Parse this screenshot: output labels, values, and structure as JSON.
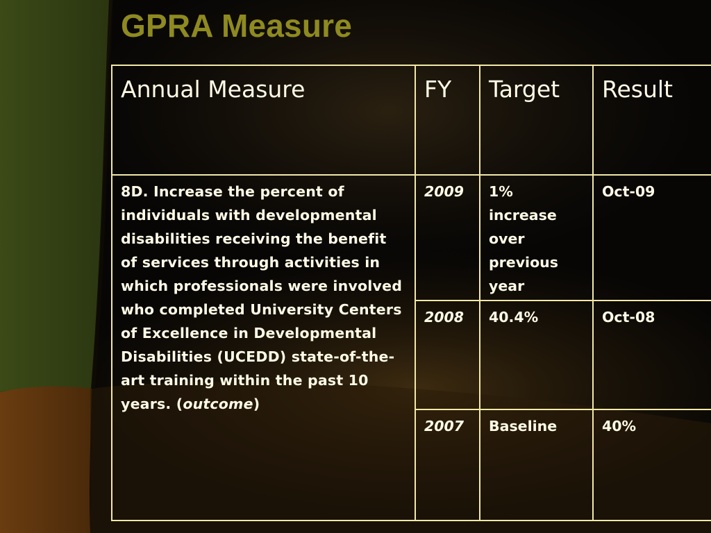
{
  "slide": {
    "title": "GPRA Measure"
  },
  "table": {
    "headers": [
      "Annual Measure",
      "FY",
      "Target",
      "Result"
    ],
    "measure": {
      "text": "8D. Increase the percent of individuals with developmental disabilities receiving the benefit of services through activities in which professionals were involved who completed University Centers of Excellence in Developmental Disabilities (UCEDD) state-of-the-art training within the past 10 years. (",
      "emphasis": "outcome",
      "suffix": ")"
    },
    "rows": [
      {
        "fy": "2009",
        "target": "1% increase over previous year",
        "result": "Oct-09"
      },
      {
        "fy": "2008",
        "target": "40.4%",
        "result": "Oct-08"
      },
      {
        "fy": "2007",
        "target": "Baseline",
        "result": "40%"
      }
    ]
  },
  "colors": {
    "title": "#8e8a20",
    "table_border": "#f2e9a8",
    "table_text": "#fffbe6",
    "background": "#050403"
  }
}
